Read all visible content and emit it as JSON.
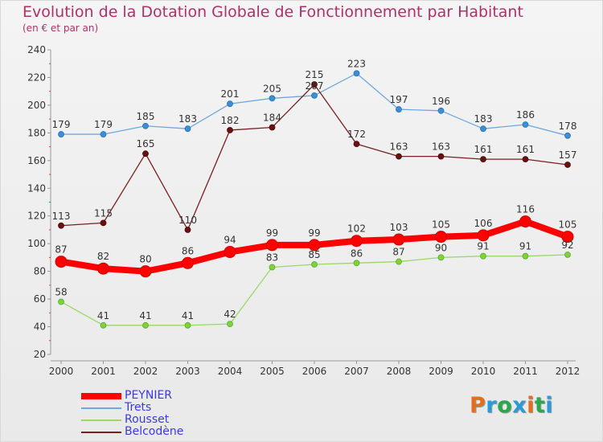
{
  "title": "Evolution de la Dotation Globale de Fonctionnement par Habitant",
  "subtitle": "(en € et par an)",
  "logo": "Proxiti",
  "logo_colors": [
    "#e07020",
    "#2a9ad8",
    "#2aa84a",
    "#2a9ad8",
    "#e07020",
    "#2aa84a",
    "#2a9ad8"
  ],
  "colors": {
    "peynier": "#ff0000",
    "trets": "#6fa8dc",
    "rousset": "#9ad86a",
    "belcodene": "#7a1e22",
    "axis_text": "#333333",
    "legend_text": "#3a3ae0"
  },
  "chart_data": {
    "type": "line",
    "x": [
      "2000",
      "2001",
      "2002",
      "2003",
      "2004",
      "2005",
      "2006",
      "2007",
      "2008",
      "2009",
      "2010",
      "2011",
      "2012"
    ],
    "ylim": [
      20,
      240
    ],
    "yticks": [
      20,
      40,
      60,
      80,
      100,
      120,
      140,
      160,
      180,
      200,
      220,
      240
    ],
    "grid": false,
    "legend_position": "bottom-left",
    "series": [
      {
        "name": "PEYNIER",
        "key": "peynier",
        "values": [
          87,
          82,
          80,
          86,
          94,
          99,
          99,
          102,
          103,
          105,
          106,
          116,
          105
        ]
      },
      {
        "name": "Trets",
        "key": "trets",
        "values": [
          179,
          179,
          185,
          183,
          201,
          205,
          207,
          223,
          197,
          196,
          183,
          186,
          178
        ]
      },
      {
        "name": "Rousset",
        "key": "rousset",
        "values": [
          58,
          41,
          41,
          41,
          42,
          83,
          85,
          86,
          87,
          90,
          91,
          91,
          92
        ]
      },
      {
        "name": "Belcodène",
        "key": "belcodene",
        "values": [
          113,
          115,
          165,
          110,
          182,
          184,
          215,
          172,
          163,
          163,
          161,
          161,
          157
        ]
      }
    ]
  }
}
